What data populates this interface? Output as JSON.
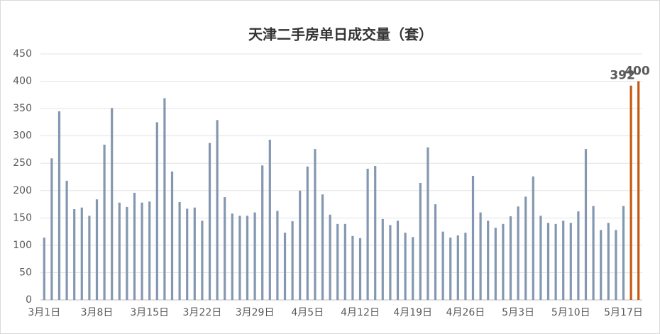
{
  "chart_data": {
    "type": "bar",
    "title": "天津二手房单日成交量（套）",
    "categories": [
      "3月1日",
      null,
      null,
      null,
      null,
      null,
      null,
      "3月8日",
      null,
      null,
      null,
      null,
      null,
      null,
      "3月15日",
      null,
      null,
      null,
      null,
      null,
      null,
      "3月22日",
      null,
      null,
      null,
      null,
      null,
      null,
      "3月29日",
      null,
      null,
      null,
      null,
      null,
      null,
      "4月5日",
      null,
      null,
      null,
      null,
      null,
      null,
      "4月12日",
      null,
      null,
      null,
      null,
      null,
      null,
      "4月19日",
      null,
      null,
      null,
      null,
      null,
      null,
      "4月26日",
      null,
      null,
      null,
      null,
      null,
      null,
      "5月3日",
      null,
      null,
      null,
      null,
      null,
      null,
      "5月10日",
      null,
      null,
      null,
      null,
      null,
      null,
      "5月17日",
      null,
      null
    ],
    "series": [
      {
        "color": "#8497b0",
        "values": [
          114,
          259,
          345,
          218,
          166,
          169,
          154,
          184,
          284,
          351,
          178,
          170,
          196,
          178,
          180,
          325,
          369,
          235,
          179,
          167,
          169,
          145,
          287,
          329,
          188,
          158,
          154,
          154,
          160,
          246,
          293,
          163,
          123,
          144,
          200,
          244,
          276,
          193,
          156,
          139,
          139,
          117,
          113,
          240,
          245,
          148,
          137,
          145,
          123,
          115,
          214,
          279,
          175,
          125,
          114,
          118,
          123,
          227,
          160,
          145,
          132,
          139,
          153,
          171,
          189,
          226,
          154,
          141,
          139,
          145,
          141,
          162,
          276,
          172,
          128,
          141,
          128,
          172,
          null,
          null
        ]
      },
      {
        "color": "#c55a11",
        "label_color": "#c00000",
        "show_values": true,
        "values": [
          null,
          null,
          null,
          null,
          null,
          null,
          null,
          null,
          null,
          null,
          null,
          null,
          null,
          null,
          null,
          null,
          null,
          null,
          null,
          null,
          null,
          null,
          null,
          null,
          null,
          null,
          null,
          null,
          null,
          null,
          null,
          null,
          null,
          null,
          null,
          null,
          null,
          null,
          null,
          null,
          null,
          null,
          null,
          null,
          null,
          null,
          null,
          null,
          null,
          null,
          null,
          null,
          null,
          null,
          null,
          null,
          null,
          null,
          null,
          null,
          null,
          null,
          null,
          null,
          null,
          null,
          null,
          null,
          null,
          null,
          null,
          null,
          null,
          null,
          null,
          null,
          null,
          null,
          392,
          400
        ]
      }
    ],
    "ylim": [
      0,
      450
    ],
    "yticks": [
      0,
      50,
      100,
      150,
      200,
      250,
      300,
      350,
      400,
      450
    ],
    "grid": true
  }
}
